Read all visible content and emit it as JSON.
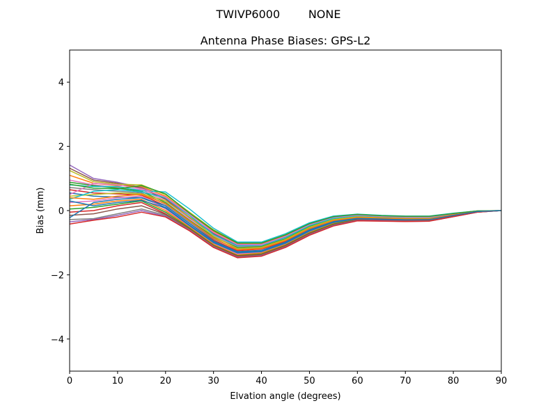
{
  "suptitle": "TWIVP6000        NONE",
  "chart_data": {
    "type": "line",
    "title": "Antenna Phase Biases: GPS-L2",
    "xlabel": "Elvation angle (degrees)",
    "ylabel": "Bias (mm)",
    "xlim": [
      0,
      90
    ],
    "ylim": [
      -5,
      5
    ],
    "xticks": [
      0,
      10,
      20,
      30,
      40,
      50,
      60,
      70,
      80,
      90
    ],
    "yticks": [
      -4,
      -2,
      0,
      2,
      4
    ],
    "xtick_labels": [
      "0",
      "10",
      "20",
      "30",
      "40",
      "50",
      "60",
      "70",
      "80",
      "90"
    ],
    "ytick_labels": [
      "−4",
      "−2",
      "0",
      "2",
      "4"
    ],
    "grid": false,
    "legend": "none",
    "x": [
      0,
      5,
      10,
      15,
      20,
      25,
      30,
      35,
      40,
      45,
      50,
      55,
      60,
      65,
      70,
      75,
      80,
      85,
      90
    ],
    "series": [
      {
        "color": "#9467bd",
        "values": [
          1.42,
          1.0,
          0.88,
          0.72,
          0.38,
          -0.2,
          -0.7,
          -1.05,
          -1.05,
          -0.8,
          -0.45,
          -0.22,
          -0.15,
          -0.18,
          -0.2,
          -0.2,
          -0.1,
          -0.02,
          0.0
        ]
      },
      {
        "color": "#8c564b",
        "values": [
          1.32,
          0.95,
          0.85,
          0.7,
          0.35,
          -0.22,
          -0.72,
          -1.08,
          -1.08,
          -0.82,
          -0.46,
          -0.23,
          -0.16,
          -0.19,
          -0.21,
          -0.21,
          -0.11,
          -0.02,
          0.0
        ]
      },
      {
        "color": "#bcbd22",
        "values": [
          1.25,
          0.9,
          0.82,
          0.8,
          0.5,
          -0.05,
          -0.6,
          -1.0,
          -1.0,
          -0.75,
          -0.4,
          -0.18,
          -0.12,
          -0.16,
          -0.18,
          -0.18,
          -0.09,
          -0.01,
          0.0
        ]
      },
      {
        "color": "#ff7f0e",
        "values": [
          1.1,
          0.85,
          0.78,
          0.75,
          0.45,
          -0.1,
          -0.65,
          -1.02,
          -1.02,
          -0.77,
          -0.42,
          -0.2,
          -0.13,
          -0.17,
          -0.19,
          -0.19,
          -0.09,
          -0.01,
          0.0
        ]
      },
      {
        "color": "#e377c2",
        "values": [
          0.95,
          0.8,
          0.72,
          0.65,
          0.3,
          -0.25,
          -0.78,
          -1.12,
          -1.1,
          -0.85,
          -0.48,
          -0.25,
          -0.17,
          -0.2,
          -0.22,
          -0.22,
          -0.11,
          -0.02,
          0.0
        ]
      },
      {
        "color": "#2ca02c",
        "values": [
          0.88,
          0.78,
          0.7,
          0.6,
          0.25,
          -0.3,
          -0.82,
          -1.15,
          -1.12,
          -0.88,
          -0.5,
          -0.27,
          -0.18,
          -0.21,
          -0.23,
          -0.23,
          -0.12,
          -0.02,
          0.0
        ]
      },
      {
        "color": "#17becf",
        "values": [
          0.8,
          0.75,
          0.75,
          0.62,
          0.58,
          0.05,
          -0.55,
          -0.98,
          -0.98,
          -0.72,
          -0.38,
          -0.17,
          -0.11,
          -0.15,
          -0.17,
          -0.17,
          -0.08,
          -0.01,
          0.0
        ]
      },
      {
        "color": "#7f7f7f",
        "values": [
          0.72,
          0.65,
          0.6,
          0.55,
          0.2,
          -0.35,
          -0.88,
          -1.2,
          -1.16,
          -0.92,
          -0.55,
          -0.3,
          -0.2,
          -0.23,
          -0.25,
          -0.25,
          -0.13,
          -0.03,
          0.0
        ]
      },
      {
        "color": "#d62728",
        "values": [
          0.65,
          0.55,
          0.52,
          0.48,
          0.15,
          -0.4,
          -0.92,
          -1.25,
          -1.2,
          -0.96,
          -0.58,
          -0.32,
          -0.22,
          -0.24,
          -0.26,
          -0.26,
          -0.14,
          -0.03,
          0.0
        ]
      },
      {
        "color": "#1f77b4",
        "values": [
          0.55,
          0.45,
          0.42,
          0.4,
          0.1,
          -0.45,
          -0.98,
          -1.3,
          -1.25,
          -1.0,
          -0.62,
          -0.35,
          -0.24,
          -0.26,
          -0.28,
          -0.27,
          -0.15,
          -0.03,
          0.0
        ]
      },
      {
        "color": "#bcbd22",
        "values": [
          0.45,
          0.5,
          0.55,
          0.52,
          0.3,
          -0.2,
          -0.8,
          -1.18,
          -1.14,
          -0.9,
          -0.52,
          -0.28,
          -0.19,
          -0.22,
          -0.24,
          -0.24,
          -0.12,
          -0.02,
          0.0
        ]
      },
      {
        "color": "#17becf",
        "values": [
          0.35,
          0.6,
          0.65,
          0.58,
          0.4,
          -0.15,
          -0.75,
          -1.1,
          -1.08,
          -0.84,
          -0.47,
          -0.24,
          -0.16,
          -0.19,
          -0.21,
          -0.21,
          -0.11,
          -0.02,
          0.0
        ]
      },
      {
        "color": "#e377c2",
        "values": [
          0.25,
          0.3,
          0.4,
          0.45,
          0.05,
          -0.5,
          -1.02,
          -1.35,
          -1.3,
          -1.04,
          -0.65,
          -0.38,
          -0.26,
          -0.28,
          -0.3,
          -0.29,
          -0.16,
          -0.04,
          0.0
        ]
      },
      {
        "color": "#ff7f0e",
        "values": [
          0.15,
          0.2,
          0.3,
          0.35,
          0.0,
          -0.52,
          -1.05,
          -1.38,
          -1.32,
          -1.06,
          -0.68,
          -0.4,
          -0.27,
          -0.29,
          -0.31,
          -0.3,
          -0.17,
          -0.04,
          0.0
        ]
      },
      {
        "color": "#2ca02c",
        "values": [
          0.05,
          0.1,
          0.2,
          0.3,
          -0.05,
          -0.55,
          -1.08,
          -1.4,
          -1.35,
          -1.08,
          -0.7,
          -0.42,
          -0.28,
          -0.3,
          -0.32,
          -0.31,
          -0.17,
          -0.04,
          0.0
        ]
      },
      {
        "color": "#d62728",
        "values": [
          -0.05,
          0.0,
          0.15,
          0.25,
          -0.1,
          -0.58,
          -1.1,
          -1.42,
          -1.37,
          -1.1,
          -0.72,
          -0.44,
          -0.29,
          -0.3,
          -0.32,
          -0.31,
          -0.18,
          -0.04,
          0.0
        ]
      },
      {
        "color": "#8c564b",
        "values": [
          -0.15,
          -0.1,
          0.05,
          0.15,
          -0.12,
          -0.6,
          -1.12,
          -1.44,
          -1.38,
          -1.12,
          -0.74,
          -0.45,
          -0.3,
          -0.31,
          -0.33,
          -0.32,
          -0.18,
          -0.05,
          0.0
        ]
      },
      {
        "color": "#1f77b4",
        "values": [
          -0.22,
          0.25,
          0.35,
          0.4,
          0.15,
          -0.4,
          -0.95,
          -1.28,
          -1.24,
          -0.98,
          -0.6,
          -0.34,
          -0.23,
          -0.25,
          -0.27,
          -0.26,
          -0.14,
          -0.03,
          0.0
        ]
      },
      {
        "color": "#7f7f7f",
        "values": [
          -0.28,
          -0.25,
          -0.1,
          0.05,
          -0.15,
          -0.6,
          -1.12,
          -1.45,
          -1.4,
          -1.13,
          -0.75,
          -0.46,
          -0.31,
          -0.32,
          -0.33,
          -0.32,
          -0.19,
          -0.05,
          0.0
        ]
      },
      {
        "color": "#9467bd",
        "values": [
          -0.35,
          -0.28,
          -0.15,
          0.0,
          -0.18,
          -0.62,
          -1.14,
          -1.46,
          -1.41,
          -1.14,
          -0.76,
          -0.47,
          -0.31,
          -0.32,
          -0.34,
          -0.33,
          -0.19,
          -0.05,
          0.0
        ]
      },
      {
        "color": "#d62728",
        "values": [
          -0.42,
          -0.3,
          -0.2,
          -0.05,
          -0.2,
          -0.63,
          -1.15,
          -1.47,
          -1.42,
          -1.15,
          -0.77,
          -0.48,
          -0.32,
          -0.33,
          -0.34,
          -0.33,
          -0.19,
          -0.05,
          0.0
        ]
      },
      {
        "color": "#e377c2",
        "values": [
          0.5,
          0.85,
          0.8,
          0.68,
          0.42,
          -0.12,
          -0.68,
          -1.06,
          -1.06,
          -0.8,
          -0.44,
          -0.21,
          -0.14,
          -0.18,
          -0.2,
          -0.2,
          -0.1,
          -0.02,
          0.0
        ]
      },
      {
        "color": "#2ca02c",
        "values": [
          0.82,
          0.7,
          0.68,
          0.78,
          0.52,
          -0.08,
          -0.62,
          -1.01,
          -1.01,
          -0.76,
          -0.41,
          -0.19,
          -0.12,
          -0.16,
          -0.18,
          -0.18,
          -0.09,
          -0.01,
          0.0
        ]
      },
      {
        "color": "#ff7f0e",
        "values": [
          0.4,
          0.35,
          0.45,
          0.5,
          0.22,
          -0.32,
          -0.85,
          -1.22,
          -1.18,
          -0.93,
          -0.56,
          -0.31,
          -0.21,
          -0.23,
          -0.25,
          -0.25,
          -0.13,
          -0.03,
          0.0
        ]
      },
      {
        "color": "#1f77b4",
        "values": [
          0.3,
          0.15,
          0.25,
          0.32,
          0.08,
          -0.47,
          -1.0,
          -1.32,
          -1.28,
          -1.02,
          -0.64,
          -0.37,
          -0.25,
          -0.27,
          -0.29,
          -0.28,
          -0.15,
          -0.03,
          0.0
        ]
      }
    ]
  }
}
